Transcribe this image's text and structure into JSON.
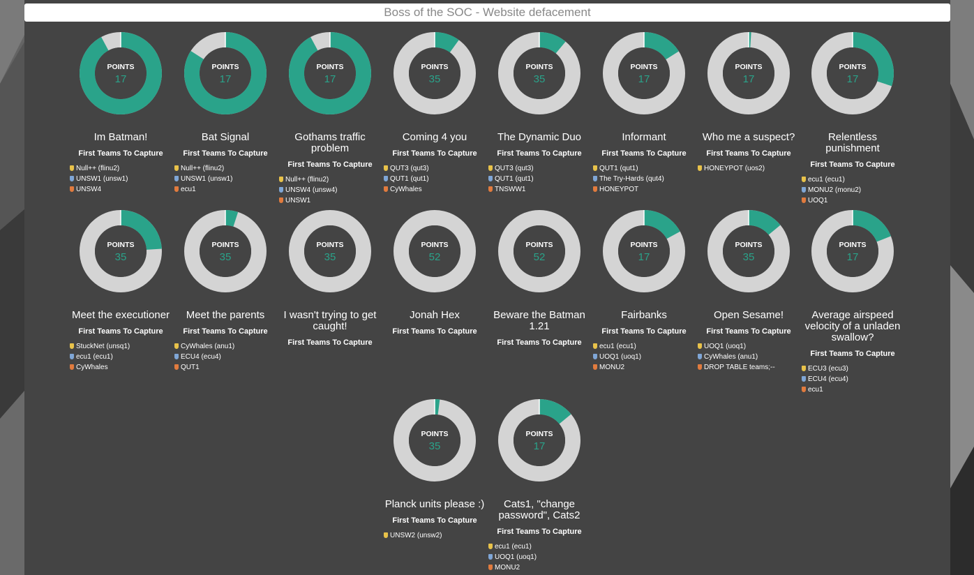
{
  "header": {
    "title": "Boss of the SOC - Website defacement"
  },
  "labels": {
    "points": "POINTS",
    "first_teams": "First Teams To Capture"
  },
  "colors": {
    "accent": "#2aa38a",
    "ring_track": "#d4d4d4",
    "panel": "#444444",
    "gold": "#e8c24a",
    "silver": "#7fa6d6",
    "bronze": "#e17b3e"
  },
  "challenges": [
    {
      "name": "Im Batman!",
      "points": "17",
      "progress": 0.92,
      "teams": [
        {
          "medal": "gold",
          "team": "Null++ (flinu2)"
        },
        {
          "medal": "silver",
          "team": "UNSW1 (unsw1)"
        },
        {
          "medal": "bronze",
          "team": "UNSW4"
        }
      ]
    },
    {
      "name": "Bat Signal",
      "points": "17",
      "progress": 0.84,
      "teams": [
        {
          "medal": "gold",
          "team": "Null++ (flinu2)"
        },
        {
          "medal": "silver",
          "team": "UNSW1 (unsw1)"
        },
        {
          "medal": "bronze",
          "team": "ecu1"
        }
      ]
    },
    {
      "name": "Gothams traffic problem",
      "points": "17",
      "progress": 0.92,
      "teams": [
        {
          "medal": "gold",
          "team": "Null++ (flinu2)"
        },
        {
          "medal": "silver",
          "team": "UNSW4 (unsw4)"
        },
        {
          "medal": "bronze",
          "team": "UNSW1"
        }
      ]
    },
    {
      "name": "Coming 4 you",
      "points": "35",
      "progress": 0.1,
      "teams": [
        {
          "medal": "gold",
          "team": "QUT3 (qut3)"
        },
        {
          "medal": "silver",
          "team": "QUT1 (qut1)"
        },
        {
          "medal": "bronze",
          "team": "CyWhales"
        }
      ]
    },
    {
      "name": "The Dynamic Duo",
      "points": "35",
      "progress": 0.11,
      "teams": [
        {
          "medal": "gold",
          "team": "QUT3 (qut3)"
        },
        {
          "medal": "silver",
          "team": "QUT1 (qut1)"
        },
        {
          "medal": "bronze",
          "team": "TNSWW1"
        }
      ]
    },
    {
      "name": "Informant",
      "points": "17",
      "progress": 0.16,
      "teams": [
        {
          "medal": "gold",
          "team": "QUT1 (qut1)"
        },
        {
          "medal": "silver",
          "team": "The Try-Hards (qut4)"
        },
        {
          "medal": "bronze",
          "team": "HONEYPOT"
        }
      ]
    },
    {
      "name": "Who me a suspect?",
      "points": "17",
      "progress": 0.01,
      "teams": [
        {
          "medal": "gold",
          "team": "HONEYPOT (uos2)"
        }
      ]
    },
    {
      "name": "Relentless punishment",
      "points": "17",
      "progress": 0.3,
      "teams": [
        {
          "medal": "gold",
          "team": "ecu1 (ecu1)"
        },
        {
          "medal": "silver",
          "team": "MONU2 (monu2)"
        },
        {
          "medal": "bronze",
          "team": "UOQ1"
        }
      ]
    },
    {
      "name": "Meet the executioner",
      "points": "35",
      "progress": 0.24,
      "teams": [
        {
          "medal": "gold",
          "team": "StuckNet (unsq1)"
        },
        {
          "medal": "silver",
          "team": "ecu1 (ecu1)"
        },
        {
          "medal": "bronze",
          "team": "CyWhales"
        }
      ]
    },
    {
      "name": "Meet the parents",
      "points": "35",
      "progress": 0.05,
      "teams": [
        {
          "medal": "gold",
          "team": "CyWhales (anu1)"
        },
        {
          "medal": "silver",
          "team": "ECU4 (ecu4)"
        },
        {
          "medal": "bronze",
          "team": "QUT1"
        }
      ]
    },
    {
      "name": "I wasn't trying to get caught!",
      "points": "35",
      "progress": 0,
      "teams": []
    },
    {
      "name": "Jonah Hex",
      "points": "52",
      "progress": 0,
      "teams": []
    },
    {
      "name": "Beware the Batman 1.21",
      "points": "52",
      "progress": 0,
      "teams": []
    },
    {
      "name": "Fairbanks",
      "points": "17",
      "progress": 0.17,
      "teams": [
        {
          "medal": "gold",
          "team": "ecu1 (ecu1)"
        },
        {
          "medal": "silver",
          "team": "UOQ1 (uoq1)"
        },
        {
          "medal": "bronze",
          "team": "MONU2"
        }
      ]
    },
    {
      "name": "Open Sesame!",
      "points": "35",
      "progress": 0.14,
      "teams": [
        {
          "medal": "gold",
          "team": "UOQ1 (uoq1)"
        },
        {
          "medal": "silver",
          "team": "CyWhales (anu1)"
        },
        {
          "medal": "bronze",
          "team": "DROP TABLE teams;--"
        }
      ]
    },
    {
      "name": "Average airspeed velocity of a unladen swallow?",
      "points": "17",
      "progress": 0.19,
      "teams": [
        {
          "medal": "gold",
          "team": "ECU3 (ecu3)"
        },
        {
          "medal": "silver",
          "team": "ECU4 (ecu4)"
        },
        {
          "medal": "bronze",
          "team": "ecu1"
        }
      ]
    },
    {
      "name": "Planck units please :)",
      "points": "35",
      "progress": 0.02,
      "teams": [
        {
          "medal": "gold",
          "team": "UNSW2 (unsw2)"
        }
      ]
    },
    {
      "name": "Cats1, \"change password\", Cats2",
      "points": "17",
      "progress": 0.14,
      "teams": [
        {
          "medal": "gold",
          "team": "ecu1 (ecu1)"
        },
        {
          "medal": "silver",
          "team": "UOQ1 (uoq1)"
        },
        {
          "medal": "bronze",
          "team": "MONU2"
        }
      ]
    }
  ]
}
